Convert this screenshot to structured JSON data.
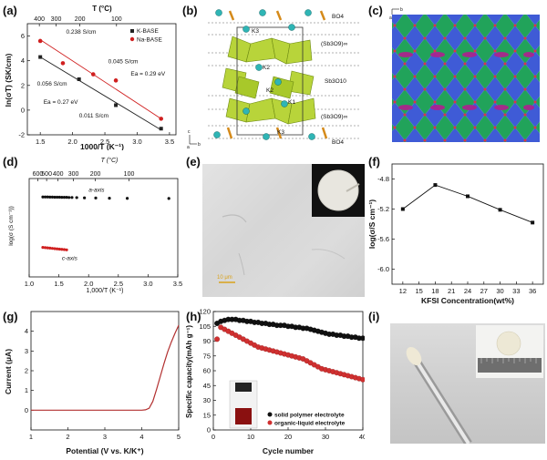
{
  "panels": {
    "a": {
      "label": "(a)"
    },
    "b": {
      "label": "(b)"
    },
    "c": {
      "label": "(c)"
    },
    "d": {
      "label": "(d)"
    },
    "e": {
      "label": "(e)"
    },
    "f": {
      "label": "(f)"
    },
    "g": {
      "label": "(g)"
    },
    "h": {
      "label": "(h)"
    },
    "i": {
      "label": "(i)"
    }
  },
  "diagram_b": {
    "layers": [
      "BO4",
      "(Sb3O9)∞",
      "Sb3O10",
      "(Sb3O9)∞",
      "BO4"
    ],
    "sites": [
      "K3",
      "K2",
      "K2",
      "K1",
      "K3"
    ],
    "axes": [
      "c",
      "b",
      "a"
    ]
  },
  "diagram_c": {
    "axes": [
      "b",
      "a"
    ]
  },
  "photo_e": {
    "scale_bar": "10 μm"
  },
  "chart_data": [
    {
      "panel": "a",
      "type": "scatter",
      "xlabel": "1000/T (K⁻¹)",
      "ylabel": "ln(σT) (SK/cm)",
      "top_xlabel": "T (°C)",
      "top_ticks": [
        "400",
        "300",
        "200",
        "100"
      ],
      "top_tick_temps_c": [
        400,
        300,
        200,
        100
      ],
      "xlim": [
        1.3,
        3.6
      ],
      "ylim": [
        -2,
        7
      ],
      "xticks": [
        1.5,
        2.0,
        2.5,
        3.0,
        3.5
      ],
      "xtick_labels": [
        "1.5",
        "2.0",
        "2.5",
        "3.0",
        "3.5"
      ],
      "yticks": [
        -2,
        0,
        2,
        4,
        6
      ],
      "ytick_labels": [
        "-2",
        "0",
        "2",
        "4",
        "6"
      ],
      "legend": {
        "position": "top-right",
        "entries": [
          "K-BASE",
          "Na-BASE"
        ]
      },
      "series": [
        {
          "name": "K-BASE",
          "color": "#222222",
          "x": [
            1.5,
            2.1,
            2.67,
            3.37
          ],
          "y": [
            4.3,
            2.5,
            0.4,
            -1.5
          ],
          "fit": [
            [
              1.5,
              4.3
            ],
            [
              3.37,
              -1.6
            ]
          ]
        },
        {
          "name": "Na-BASE",
          "color": "#d02020",
          "x": [
            1.5,
            1.85,
            2.32,
            2.67,
            3.37
          ],
          "y": [
            5.6,
            3.8,
            2.9,
            2.4,
            -0.7
          ],
          "fit": [
            [
              1.5,
              5.7
            ],
            [
              3.37,
              -0.7
            ]
          ]
        }
      ],
      "annotations": [
        {
          "text": "0.238 S/cm",
          "x": 1.9,
          "y": 6.2
        },
        {
          "text": "0.045 S/cm",
          "x": 2.55,
          "y": 3.8
        },
        {
          "text": "Ea = 0.29 eV",
          "x": 2.9,
          "y": 2.8
        },
        {
          "text": "0.056 S/cm",
          "x": 1.45,
          "y": 2.0
        },
        {
          "text": "Ea = 0.27 eV",
          "x": 1.55,
          "y": 0.5
        },
        {
          "text": "0.011 S/cm",
          "x": 2.1,
          "y": -0.6
        }
      ]
    },
    {
      "panel": "d",
      "type": "scatter",
      "xlabel": "1,000/T (K⁻¹)",
      "ylabel": "log(σ (S cm⁻¹))",
      "top_xlabel": "T (°C)",
      "top_ticks": [
        "600",
        "500",
        "400",
        "300",
        "200",
        "100"
      ],
      "top_tick_temps_c": [
        600,
        500,
        400,
        300,
        200,
        100
      ],
      "xlim": [
        1.0,
        3.5
      ],
      "ylim": [
        -10,
        -2
      ],
      "xticks": [
        1.0,
        1.5,
        2.0,
        2.5,
        3.0,
        3.5
      ],
      "xtick_labels": [
        "1.0",
        "1.5",
        "2.0",
        "2.5",
        "3.0",
        "3.5"
      ],
      "series": [
        {
          "name": "a-axis",
          "color": "#111111",
          "x": [
            1.23,
            1.27,
            1.31,
            1.35,
            1.39,
            1.43,
            1.47,
            1.51,
            1.55,
            1.59,
            1.63,
            1.67,
            1.72,
            1.8,
            1.93,
            2.12,
            2.35,
            2.65,
            3.35
          ],
          "y": [
            -3.5,
            -3.5,
            -3.5,
            -3.51,
            -3.51,
            -3.52,
            -3.52,
            -3.52,
            -3.53,
            -3.53,
            -3.53,
            -3.54,
            -3.54,
            -3.55,
            -3.57,
            -3.58,
            -3.6,
            -3.61,
            -3.62
          ]
        },
        {
          "name": "c-axis",
          "color": "#d02020",
          "x": [
            1.23,
            1.27,
            1.31,
            1.35,
            1.39,
            1.43,
            1.47,
            1.51,
            1.55,
            1.59,
            1.63
          ],
          "y": [
            -7.6,
            -7.62,
            -7.64,
            -7.66,
            -7.68,
            -7.7,
            -7.72,
            -7.74,
            -7.76,
            -7.78,
            -7.8
          ]
        }
      ]
    },
    {
      "panel": "f",
      "type": "line",
      "xlabel": "KFSI Concentration(wt%)",
      "ylabel": "log(σ/S cm⁻¹)",
      "xlim": [
        10,
        38
      ],
      "ylim": [
        -6.2,
        -4.6
      ],
      "xticks": [
        12,
        15,
        18,
        21,
        24,
        27,
        30,
        33,
        36
      ],
      "yticks": [
        -6.0,
        -5.6,
        -5.2,
        -4.8
      ],
      "ytick_labels": [
        "-6.0",
        "-5.6",
        "-5.2",
        "-4.8"
      ],
      "x": [
        12,
        18,
        24,
        30,
        36
      ],
      "y": [
        -5.2,
        -4.88,
        -5.03,
        -5.21,
        -5.38
      ]
    },
    {
      "panel": "g",
      "type": "line",
      "xlabel": "Potential (V vs. K/K⁺)",
      "ylabel": "Current (μA)",
      "xlim": [
        1,
        5
      ],
      "ylim": [
        -1,
        5
      ],
      "xticks": [
        1,
        2,
        3,
        4,
        5
      ],
      "yticks": [
        0,
        1,
        2,
        3,
        4
      ],
      "x": [
        1.0,
        2.0,
        3.0,
        4.0,
        4.1,
        4.2,
        4.3,
        4.4,
        4.5,
        4.6,
        4.7,
        4.8,
        4.9,
        5.0
      ],
      "y": [
        0,
        0,
        0,
        0,
        0.02,
        0.1,
        0.45,
        1.05,
        1.7,
        2.35,
        2.95,
        3.45,
        3.9,
        4.3
      ]
    },
    {
      "panel": "h",
      "type": "scatter",
      "xlabel": "Cycle number",
      "ylabel": "Specific capacity(mAh g⁻¹)",
      "xlim": [
        0,
        40
      ],
      "ylim": [
        0,
        120
      ],
      "xticks": [
        0,
        10,
        20,
        30,
        40
      ],
      "yticks": [
        0,
        15,
        30,
        45,
        60,
        75,
        90,
        105,
        120
      ],
      "legend": {
        "position": "bottom-right",
        "entries": [
          "solid polymer electrolyte",
          "organic-liquid electrolyte"
        ]
      },
      "series": [
        {
          "name": "solid polymer electrolyte",
          "color": "#111111",
          "x_start": 1,
          "x_step": 1,
          "y": [
            108,
            110,
            111,
            112,
            112,
            112,
            111,
            111,
            110,
            110,
            109,
            109,
            108,
            108,
            107,
            107,
            106,
            106,
            106,
            105,
            105,
            104,
            104,
            103,
            103,
            102,
            101,
            100,
            99,
            98,
            97,
            97,
            96,
            96,
            95,
            95,
            94,
            94,
            93,
            93
          ]
        },
        {
          "name": "organic-liquid electrolyte",
          "color": "#d03030",
          "x_start": 1,
          "x_step": 1,
          "y": [
            92,
            104,
            102,
            100,
            98,
            96,
            94,
            92,
            90,
            88,
            86,
            84,
            83,
            82,
            81,
            80,
            79,
            78,
            77,
            76,
            75,
            74,
            73,
            72,
            70,
            68,
            66,
            64,
            62,
            61,
            60,
            59,
            58,
            57,
            56,
            55,
            54,
            53,
            52,
            51
          ]
        }
      ]
    }
  ]
}
